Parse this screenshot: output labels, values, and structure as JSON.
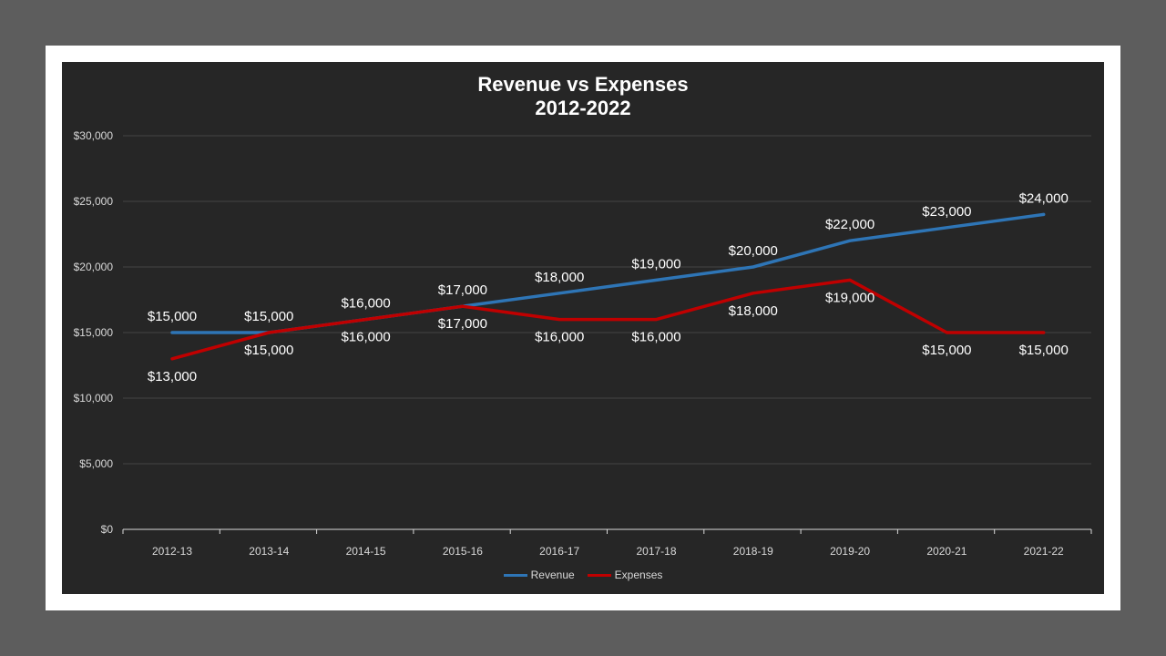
{
  "chart_data": {
    "type": "line",
    "title_line1": "Revenue vs Expenses",
    "title_line2": "2012-2022",
    "xlabel": "",
    "ylabel": "",
    "categories": [
      "2012-13",
      "2013-14",
      "2014-15",
      "2015-16",
      "2016-17",
      "2017-18",
      "2018-19",
      "2019-20",
      "2020-21",
      "2021-22"
    ],
    "ylim": [
      0,
      30000
    ],
    "yticks": [
      0,
      5000,
      10000,
      15000,
      20000,
      25000,
      30000
    ],
    "ytick_labels": [
      "$0",
      "$5,000",
      "$10,000",
      "$15,000",
      "$20,000",
      "$25,000",
      "$30,000"
    ],
    "grid": true,
    "legend_position": "bottom",
    "series": [
      {
        "name": "Revenue",
        "color": "#2e75b6",
        "values": [
          15000,
          15000,
          16000,
          17000,
          18000,
          19000,
          20000,
          22000,
          23000,
          24000
        ],
        "labels": [
          "$15,000",
          "$15,000",
          "$16,000",
          "$17,000",
          "$18,000",
          "$19,000",
          "$20,000",
          "$22,000",
          "$23,000",
          "$24,000"
        ],
        "label_side": [
          "above",
          "above",
          "above",
          "above",
          "above",
          "above",
          "above",
          "above",
          "above",
          "above"
        ]
      },
      {
        "name": "Expenses",
        "color": "#c00000",
        "values": [
          13000,
          15000,
          16000,
          17000,
          16000,
          16000,
          18000,
          19000,
          15000,
          15000
        ],
        "labels": [
          "$13,000",
          "$15,000",
          "$16,000",
          "$17,000",
          "$16,000",
          "$16,000",
          "$18,000",
          "$19,000",
          "$15,000",
          "$15,000"
        ],
        "label_side": [
          "below",
          "below",
          "below",
          "below",
          "below",
          "below",
          "below",
          "below",
          "below",
          "below"
        ]
      }
    ]
  }
}
